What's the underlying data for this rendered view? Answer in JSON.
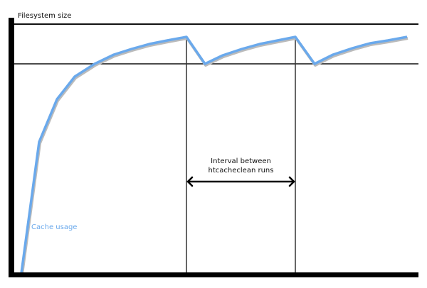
{
  "labels": {
    "y_axis": "Filesystem size",
    "series": "Cache usage",
    "interval_line1": "Interval between",
    "interval_line2": "htcacheclean runs"
  },
  "colors": {
    "curve": "#6aa9ec",
    "axes": "#000000",
    "series_label": "#6aa9ec"
  }
}
